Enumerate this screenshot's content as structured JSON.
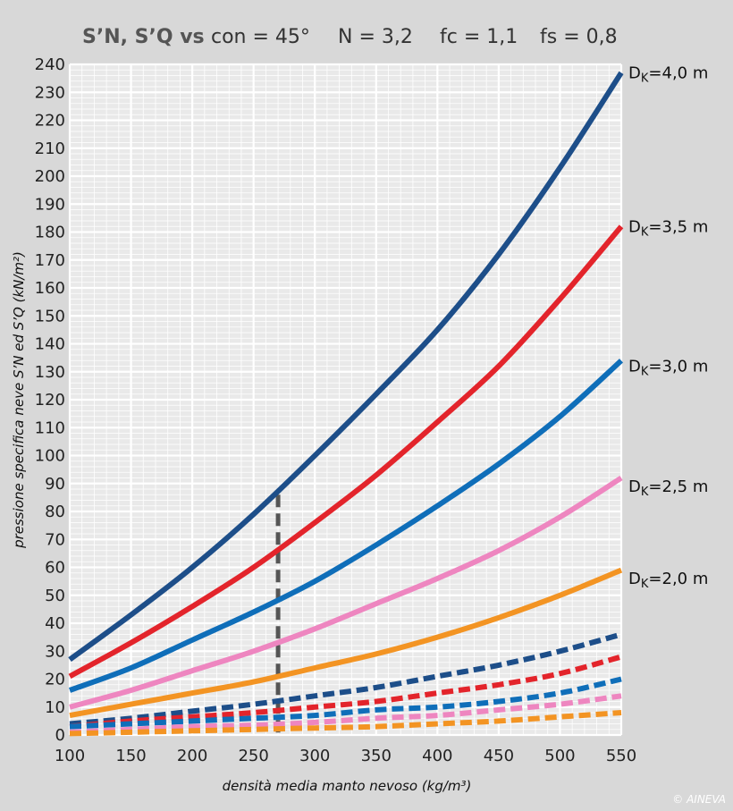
{
  "chart_data": {
    "type": "line",
    "title_parts": [
      "S’N, S’Q vs",
      "con = 45°",
      "N = 3,2",
      "fc = 1,1",
      "fs = 0,8"
    ],
    "xlabel": "densità media manto nevoso (kg/m³)",
    "ylabel": "pressione specifica neve S’N ed S’Q (kN/m²)",
    "xlim": [
      100,
      550
    ],
    "ylim": [
      0,
      240
    ],
    "x_ticks": [
      100,
      150,
      200,
      250,
      300,
      350,
      400,
      450,
      500,
      550
    ],
    "y_ticks": [
      0,
      10,
      20,
      30,
      40,
      50,
      60,
      70,
      80,
      90,
      100,
      110,
      120,
      130,
      140,
      150,
      160,
      170,
      180,
      190,
      200,
      210,
      220,
      230,
      240
    ],
    "grid": true,
    "reference_line": {
      "x": 270,
      "y_top": 86
    },
    "series": [
      {
        "name": "DK=4,0 m",
        "color": "#1d4e89",
        "style": "solid",
        "x": [
          100,
          150,
          200,
          250,
          300,
          350,
          400,
          450,
          500,
          550
        ],
        "y": [
          27,
          43,
          60,
          79,
          100,
          122,
          145,
          172,
          203,
          237
        ]
      },
      {
        "name": "DK=3,5 m",
        "color": "#e3242b",
        "style": "solid",
        "x": [
          100,
          150,
          200,
          250,
          300,
          350,
          400,
          450,
          500,
          550
        ],
        "y": [
          21,
          33,
          46,
          60,
          76,
          93,
          112,
          132,
          156,
          182
        ]
      },
      {
        "name": "DK=3,0 m",
        "color": "#0f6eb9",
        "style": "solid",
        "x": [
          100,
          150,
          200,
          250,
          300,
          350,
          400,
          450,
          500,
          550
        ],
        "y": [
          16,
          24,
          34,
          44,
          55,
          68,
          82,
          97,
          114,
          134
        ]
      },
      {
        "name": "DK=2,5 m",
        "color": "#ee86c0",
        "style": "solid",
        "x": [
          100,
          150,
          200,
          250,
          300,
          350,
          400,
          450,
          500,
          550
        ],
        "y": [
          10,
          16,
          23,
          30,
          38,
          47,
          56,
          66,
          78,
          92
        ]
      },
      {
        "name": "DK=2,0 m",
        "color": "#f39423",
        "style": "solid",
        "x": [
          100,
          150,
          200,
          250,
          300,
          350,
          400,
          450,
          500,
          550
        ],
        "y": [
          7,
          11,
          15,
          19,
          24,
          29,
          35,
          42,
          50,
          59
        ]
      },
      {
        "color": "#1d4e89",
        "style": "dashed",
        "x": [
          100,
          150,
          200,
          250,
          300,
          350,
          400,
          450,
          500,
          550
        ],
        "y": [
          4,
          6,
          8.5,
          11,
          14,
          17,
          21,
          25,
          30,
          36
        ]
      },
      {
        "color": "#e3242b",
        "style": "dashed",
        "x": [
          100,
          150,
          200,
          250,
          300,
          350,
          400,
          450,
          500,
          550
        ],
        "y": [
          3,
          5,
          6.5,
          8,
          10,
          12,
          15,
          18,
          22,
          28
        ]
      },
      {
        "color": "#0f6eb9",
        "style": "dashed",
        "x": [
          100,
          150,
          200,
          250,
          300,
          350,
          400,
          450,
          500,
          550
        ],
        "y": [
          3,
          4,
          5,
          6,
          7,
          9,
          10,
          12,
          15,
          20
        ]
      },
      {
        "color": "#ee86c0",
        "style": "dashed",
        "x": [
          100,
          150,
          200,
          250,
          300,
          350,
          400,
          450,
          500,
          550
        ],
        "y": [
          1,
          2,
          3,
          3.5,
          4.5,
          6,
          7,
          9,
          11,
          14
        ]
      },
      {
        "color": "#f39423",
        "style": "dashed",
        "x": [
          100,
          150,
          200,
          250,
          300,
          350,
          400,
          450,
          500,
          550
        ],
        "y": [
          0.5,
          1,
          1.5,
          2,
          2.5,
          3,
          4,
          5,
          6.5,
          8
        ]
      }
    ],
    "series_labels": [
      {
        "text": "DK=4,0 m",
        "y": 237
      },
      {
        "text": "DK=3,5 m",
        "y": 182
      },
      {
        "text": "DK=3,0 m",
        "y": 132
      },
      {
        "text": "DK=2,5 m",
        "y": 89
      },
      {
        "text": "DK=2,0 m",
        "y": 56
      }
    ],
    "credit": "© AINEVA"
  }
}
